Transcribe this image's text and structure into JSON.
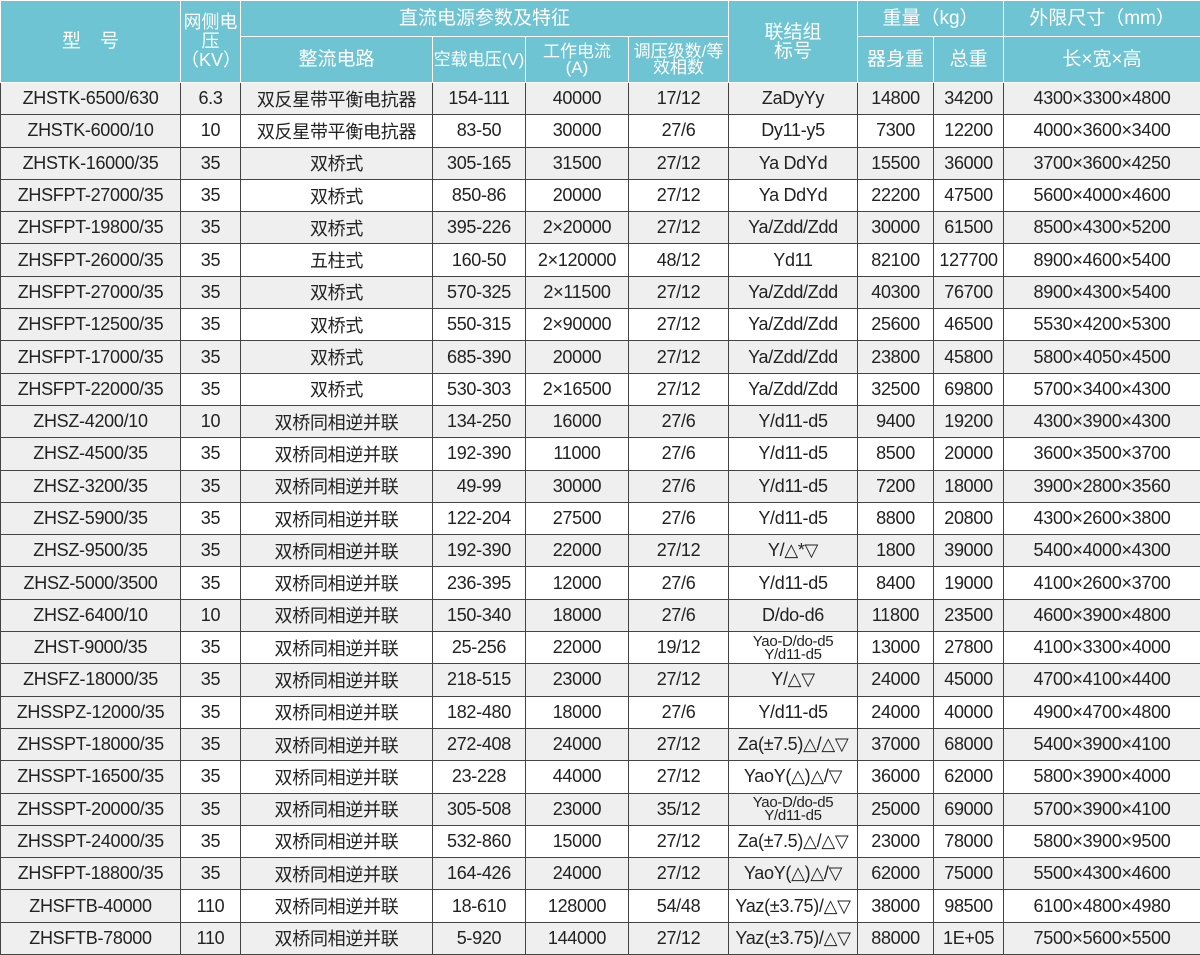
{
  "header": {
    "model": "型　号",
    "voltage": "网侧电压（KV）",
    "dc_group": "直流电源参数及特征",
    "circuit": "整流电路",
    "no_load_voltage": "空载电压(V)",
    "current": "工作电流(A)",
    "steps": "调压级数/等效相数",
    "connection": "联结组标号",
    "weight_group": "重量（kg）",
    "body_weight": "器身重",
    "total_weight": "总重",
    "dims_group": "外限尺寸（mm）",
    "dims": "长×宽×高"
  },
  "accent_color": "#6ec4d2",
  "rows": [
    [
      "ZHSTK-6500/630",
      "6.3",
      "双反星带平衡电抗器",
      "154-111",
      "40000",
      "17/12",
      "ZaDyYy",
      "14800",
      "34200",
      "4300×3300×4800"
    ],
    [
      "ZHSTK-6000/10",
      "10",
      "双反星带平衡电抗器",
      "83-50",
      "30000",
      "27/6",
      "Dy11-y5",
      "7300",
      "12200",
      "4000×3600×3400"
    ],
    [
      "ZHSTK-16000/35",
      "35",
      "双桥式",
      "305-165",
      "31500",
      "27/12",
      "Ya DdYd",
      "15500",
      "36000",
      "3700×3600×4250"
    ],
    [
      "ZHSFPT-27000/35",
      "35",
      "双桥式",
      "850-86",
      "20000",
      "27/12",
      "Ya DdYd",
      "22200",
      "47500",
      "5600×4000×4600"
    ],
    [
      "ZHSFPT-19800/35",
      "35",
      "双桥式",
      "395-226",
      "2×20000",
      "27/12",
      "Ya/Zdd/Zdd",
      "30000",
      "61500",
      "8500×4300×5200"
    ],
    [
      "ZHSFPT-26000/35",
      "35",
      "五柱式",
      "160-50",
      "2×120000",
      "48/12",
      "Yd11",
      "82100",
      "127700",
      "8900×4600×5400"
    ],
    [
      "ZHSFPT-27000/35",
      "35",
      "双桥式",
      "570-325",
      "2×11500",
      "27/12",
      "Ya/Zdd/Zdd",
      "40300",
      "76700",
      "8900×4300×5400"
    ],
    [
      "ZHSFPT-12500/35",
      "35",
      "双桥式",
      "550-315",
      "2×90000",
      "27/12",
      "Ya/Zdd/Zdd",
      "25600",
      "46500",
      "5530×4200×5300"
    ],
    [
      "ZHSFPT-17000/35",
      "35",
      "双桥式",
      "685-390",
      "20000",
      "27/12",
      "Ya/Zdd/Zdd",
      "23800",
      "45800",
      "5800×4050×4500"
    ],
    [
      "ZHSFPT-22000/35",
      "35",
      "双桥式",
      "530-303",
      "2×16500",
      "27/12",
      "Ya/Zdd/Zdd",
      "32500",
      "69800",
      "5700×3400×4300"
    ],
    [
      "ZHSZ-4200/10",
      "10",
      "双桥同相逆并联",
      "134-250",
      "16000",
      "27/6",
      "Y/d11-d5",
      "9400",
      "19200",
      "4300×3900×4300"
    ],
    [
      "ZHSZ-4500/35",
      "35",
      "双桥同相逆并联",
      "192-390",
      "11000",
      "27/6",
      "Y/d11-d5",
      "8500",
      "20000",
      "3600×3500×3700"
    ],
    [
      "ZHSZ-3200/35",
      "35",
      "双桥同相逆并联",
      "49-99",
      "30000",
      "27/6",
      "Y/d11-d5",
      "7200",
      "18000",
      "3900×2800×3560"
    ],
    [
      "ZHSZ-5900/35",
      "35",
      "双桥同相逆并联",
      "122-204",
      "27500",
      "27/6",
      "Y/d11-d5",
      "8800",
      "20800",
      "4300×2600×3800"
    ],
    [
      "ZHSZ-9500/35",
      "35",
      "双桥同相逆并联",
      "192-390",
      "22000",
      "27/12",
      "Y/△*▽",
      "1800",
      "39000",
      "5400×4000×4300"
    ],
    [
      "ZHSZ-5000/3500",
      "35",
      "双桥同相逆并联",
      "236-395",
      "12000",
      "27/6",
      "Y/d11-d5",
      "8400",
      "19000",
      "4100×2600×3700"
    ],
    [
      "ZHSZ-6400/10",
      "10",
      "双桥同相逆并联",
      "150-340",
      "18000",
      "27/6",
      "D/do-d6",
      "11800",
      "23500",
      "4600×3900×4800"
    ],
    [
      "ZHST-9000/35",
      "35",
      "双桥同相逆并联",
      "25-256",
      "22000",
      "19/12",
      "Yao-D/do-d5\nY/d11-d5",
      "13000",
      "27800",
      "4100×3300×4000"
    ],
    [
      "ZHSFZ-18000/35",
      "35",
      "双桥同相逆并联",
      "218-515",
      "23000",
      "27/12",
      "Y/△▽",
      "24000",
      "45000",
      "4700×4100×4400"
    ],
    [
      "ZHSSPZ-12000/35",
      "35",
      "双桥同相逆并联",
      "182-480",
      "18000",
      "27/6",
      "Y/d11-d5",
      "24000",
      "40000",
      "4900×4700×4800"
    ],
    [
      "ZHSSPT-18000/35",
      "35",
      "双桥同相逆并联",
      "272-408",
      "24000",
      "27/12",
      "Za(±7.5)△/△▽",
      "37000",
      "68000",
      "5400×3900×4100"
    ],
    [
      "ZHSSPT-16500/35",
      "35",
      "双桥同相逆并联",
      "23-228",
      "44000",
      "27/12",
      "YaoY(△)△/▽",
      "36000",
      "62000",
      "5800×3900×4000"
    ],
    [
      "ZHSSPT-20000/35",
      "35",
      "双桥同相逆并联",
      "305-508",
      "23000",
      "35/12",
      "Yao-D/do-d5\nY/d11-d5",
      "25000",
      "69000",
      "5700×3900×4100"
    ],
    [
      "ZHSSPT-24000/35",
      "35",
      "双桥同相逆并联",
      "532-860",
      "15000",
      "27/12",
      "Za(±7.5)△/△▽",
      "23000",
      "78000",
      "5800×3900×9500"
    ],
    [
      "ZHSFPT-18800/35",
      "35",
      "双桥同相逆并联",
      "164-426",
      "24000",
      "27/12",
      "YaoY(△)△/▽",
      "62000",
      "75000",
      "5500×4300×4600"
    ],
    [
      "ZHSFTB-40000",
      "110",
      "双桥同相逆并联",
      "18-610",
      "128000",
      "54/48",
      "Yaz(±3.75)/△▽",
      "38000",
      "98500",
      "6100×4800×4980"
    ],
    [
      "ZHSFTB-78000",
      "110",
      "双桥同相逆并联",
      "5-920",
      "144000",
      "27/12",
      "Yaz(±3.75)/△▽",
      "88000",
      "1E+05",
      "7500×5600×5500"
    ]
  ]
}
